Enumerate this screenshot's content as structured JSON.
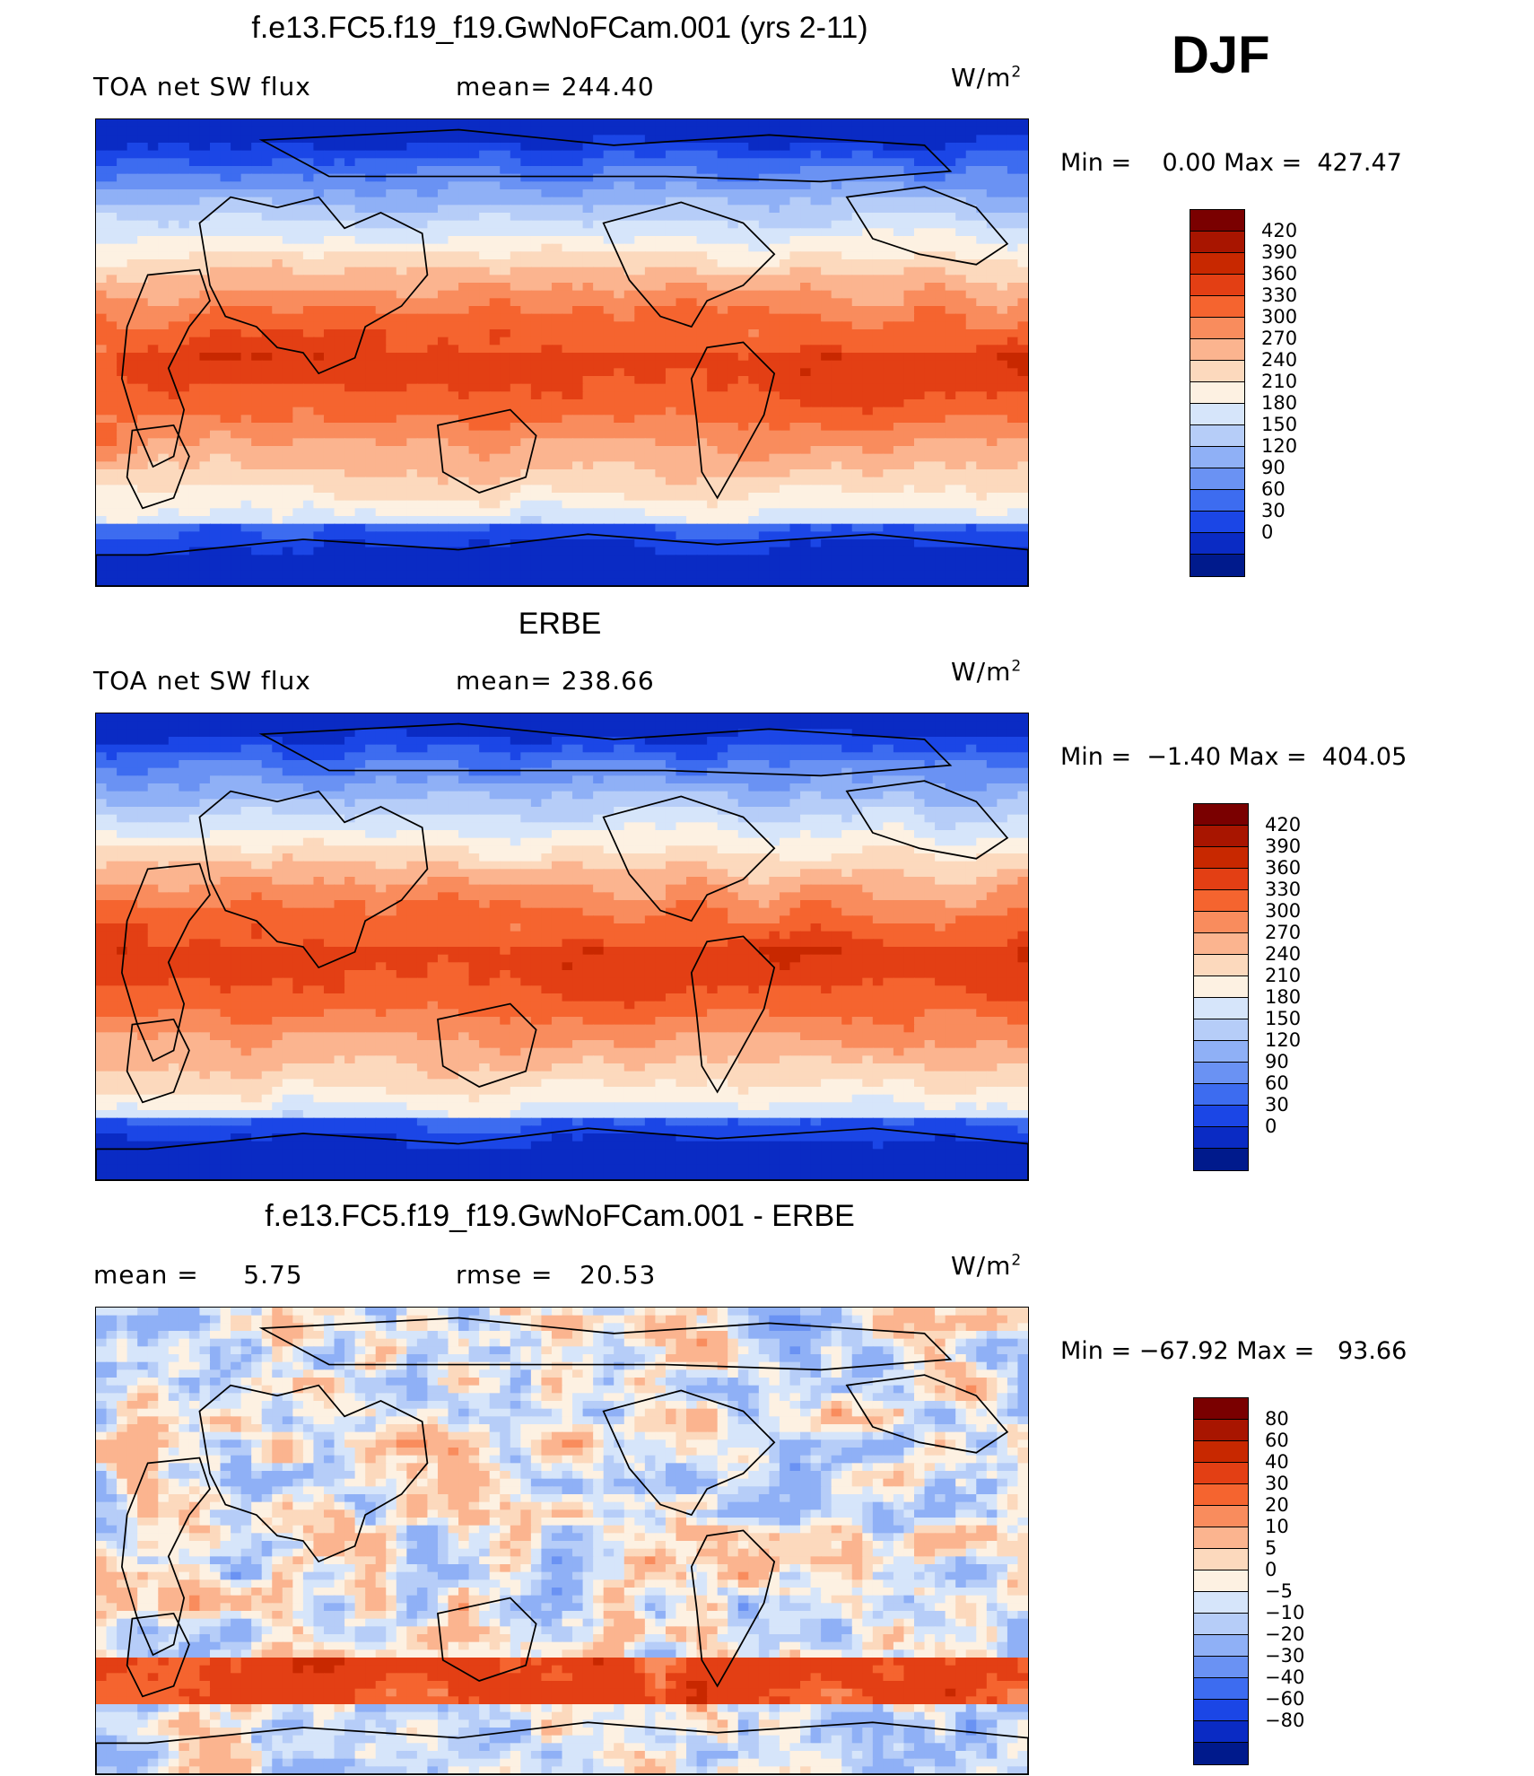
{
  "season": "DJF",
  "units_label": "W/m",
  "units_exp": "2",
  "panels": [
    {
      "id": "model",
      "title": "f.e13.FC5.f19_f19.GwNoFCam.001 (yrs 2-11)",
      "left_label": "TOA net SW flux",
      "mid_label": "mean= 244.40",
      "min_max": "Min =    0.00 Max =  427.47",
      "field": "model"
    },
    {
      "id": "obs",
      "title": "ERBE",
      "left_label": "TOA net SW flux",
      "mid_label": "mean= 238.66",
      "min_max": "Min =  −1.40 Max =  404.05",
      "field": "obs"
    },
    {
      "id": "diff",
      "title": "f.e13.FC5.f19_f19.GwNoFCam.001 - ERBE",
      "left_label": "mean =     5.75",
      "mid_label": "rmse =   20.53",
      "min_max": "Min = −67.92 Max =   93.66",
      "field": "diff"
    }
  ],
  "colorbars": {
    "abs": {
      "labels": [
        "420",
        "390",
        "360",
        "330",
        "300",
        "270",
        "240",
        "210",
        "180",
        "150",
        "120",
        "90",
        "60",
        "30",
        "0"
      ],
      "colors": [
        "#7a0000",
        "#a81500",
        "#c82800",
        "#e33f14",
        "#f5642f",
        "#f98c5d",
        "#fbb48f",
        "#fcd9bd",
        "#fdf1e2",
        "#d6e5fa",
        "#b6cdf8",
        "#8fb0f6",
        "#6a92f3",
        "#3d6cf0",
        "#1b46e6",
        "#0a2bc4",
        "#001a8c"
      ]
    },
    "diff": {
      "labels": [
        "80",
        "60",
        "40",
        "30",
        "20",
        "10",
        "5",
        "0",
        "−5",
        "−10",
        "−20",
        "−30",
        "−40",
        "−60",
        "−80"
      ],
      "colors": [
        "#7a0000",
        "#a81500",
        "#c82800",
        "#e33f14",
        "#f5642f",
        "#f98c5d",
        "#fbb48f",
        "#fcd9bd",
        "#fdf1e2",
        "#d6e5fa",
        "#b6cdf8",
        "#8fb0f6",
        "#6a92f3",
        "#3d6cf0",
        "#1b46e6",
        "#0a2bc4",
        "#001a8c"
      ]
    }
  }
}
